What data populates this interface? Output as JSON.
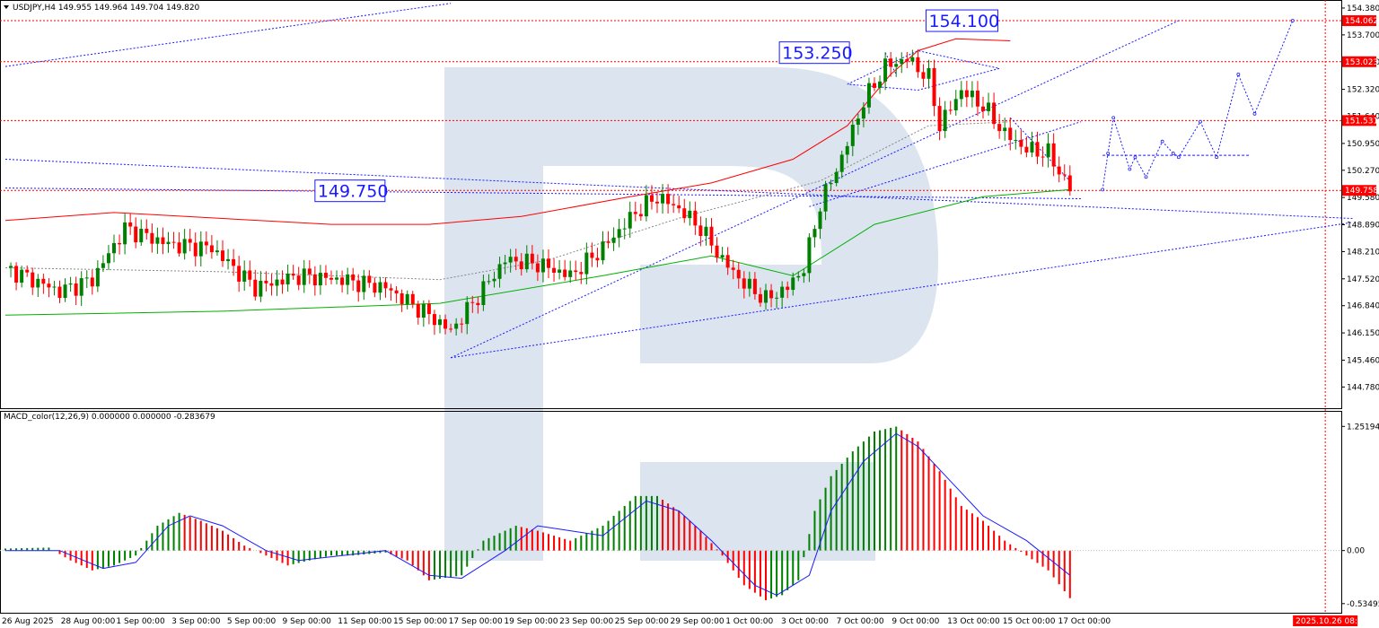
{
  "header": {
    "symbol_line": "USDJPY,H4  149.955 149.964 149.704 149.820",
    "macd_line": "MACD_color(12,26,9) 0.000000 0.000000 -0.283679"
  },
  "annotations": {
    "level_154": "154.100",
    "level_153": "153.250",
    "level_149": "149.750"
  },
  "colors": {
    "bull": "#008000",
    "bear": "#ff0000",
    "ma_slow": "#ff0000",
    "ma_fast": "#00b000",
    "trend": "#1a1aff",
    "level": "#ff0000",
    "macd_signal": "#1a1aff",
    "watermark": "#dbe4ef",
    "price_tag": "#ff0000"
  },
  "chart_data": {
    "type": "candlestick",
    "symbol": "USDJPY",
    "timeframe": "H4",
    "y_ticks": [
      "154.380",
      "153.700",
      "153.010",
      "152.320",
      "151.640",
      "150.950",
      "150.270",
      "149.580",
      "148.890",
      "148.210",
      "147.520",
      "146.840",
      "146.150",
      "145.460",
      "144.780"
    ],
    "ylim": [
      144.47,
      154.47
    ],
    "x_ticks": [
      "26 Aug 2025",
      "28 Aug 00:00",
      "1 Sep 00:00",
      "3 Sep 00:00",
      "5 Sep 00:00",
      "9 Sep 00:00",
      "11 Sep 00:00",
      "15 Sep 00:00",
      "17 Sep 00:00",
      "19 Sep 00:00",
      "23 Sep 00:00",
      "25 Sep 00:00",
      "29 Sep 00:00",
      "1 Oct 00:00",
      "3 Oct 00:00",
      "7 Oct 00:00",
      "9 Oct 00:00",
      "13 Oct 00:00",
      "15 Oct 00:00",
      "17 Oct 00:00"
    ],
    "x_end_label": "2025.10.26 08:00",
    "current_price": "149.758",
    "level_tags": [
      {
        "label": "154.062",
        "value": 154.06
      },
      {
        "label": "153.023",
        "value": 153.02
      },
      {
        "label": "151.531",
        "value": 151.53
      },
      {
        "label": "149.758",
        "value": 149.76
      }
    ],
    "close_anchors": [
      [
        0,
        147.8
      ],
      [
        10,
        147.2
      ],
      [
        16,
        147.5
      ],
      [
        22,
        148.8
      ],
      [
        30,
        148.4
      ],
      [
        38,
        148.3
      ],
      [
        46,
        147.3
      ],
      [
        54,
        147.6
      ],
      [
        62,
        147.5
      ],
      [
        70,
        147.3
      ],
      [
        78,
        146.6
      ],
      [
        82,
        146.2
      ],
      [
        86,
        146.9
      ],
      [
        92,
        148.0
      ],
      [
        98,
        147.9
      ],
      [
        104,
        147.6
      ],
      [
        110,
        148.3
      ],
      [
        116,
        149.2
      ],
      [
        120,
        149.6
      ],
      [
        124,
        149.3
      ],
      [
        128,
        148.8
      ],
      [
        132,
        148.0
      ],
      [
        136,
        147.4
      ],
      [
        140,
        147.0
      ],
      [
        144,
        147.3
      ],
      [
        147,
        147.8
      ],
      [
        150,
        149.4
      ],
      [
        154,
        150.6
      ],
      [
        158,
        152.0
      ],
      [
        162,
        152.9
      ],
      [
        166,
        153.1
      ],
      [
        170,
        152.6
      ],
      [
        172,
        151.4
      ],
      [
        176,
        152.3
      ],
      [
        180,
        151.9
      ],
      [
        184,
        151.2
      ],
      [
        188,
        150.8
      ],
      [
        192,
        150.7
      ],
      [
        196,
        149.8
      ]
    ],
    "ma_slow": [
      [
        0,
        149.0
      ],
      [
        20,
        149.2
      ],
      [
        40,
        149.05
      ],
      [
        60,
        148.9
      ],
      [
        78,
        148.9
      ],
      [
        95,
        149.1
      ],
      [
        115,
        149.6
      ],
      [
        130,
        149.95
      ],
      [
        145,
        150.55
      ],
      [
        155,
        151.4
      ],
      [
        163,
        152.7
      ],
      [
        168,
        153.3
      ],
      [
        175,
        153.6
      ],
      [
        185,
        153.55
      ]
    ],
    "ma_mid": [
      [
        0,
        147.8
      ],
      [
        40,
        147.7
      ],
      [
        80,
        147.5
      ],
      [
        100,
        148.0
      ],
      [
        125,
        149.1
      ],
      [
        150,
        150.0
      ],
      [
        170,
        151.4
      ],
      [
        185,
        151.5
      ]
    ],
    "ma_fast": [
      [
        0,
        146.6
      ],
      [
        40,
        146.7
      ],
      [
        80,
        146.9
      ],
      [
        110,
        147.6
      ],
      [
        130,
        148.1
      ],
      [
        145,
        147.6
      ],
      [
        160,
        148.9
      ],
      [
        180,
        149.6
      ],
      [
        196,
        149.78
      ]
    ],
    "forecast_path": [
      [
        202,
        149.78
      ],
      [
        203,
        150.7
      ],
      [
        204,
        151.6
      ],
      [
        207,
        150.3
      ],
      [
        208,
        150.6
      ],
      [
        210,
        150.1
      ],
      [
        213,
        151.0
      ],
      [
        215,
        150.7
      ],
      [
        216,
        150.6
      ],
      [
        220,
        151.5
      ],
      [
        223,
        150.6
      ],
      [
        227,
        152.7
      ],
      [
        230,
        151.7
      ],
      [
        237,
        154.06
      ]
    ],
    "forecast_range": {
      "from_x": 202,
      "to_x": 229,
      "value": 150.65
    },
    "trend_lines": [
      {
        "points": [
          [
            0,
            152.9
          ],
          [
            82,
            154.5
          ]
        ]
      },
      {
        "points": [
          [
            0,
            150.55
          ],
          [
            248,
            149.05
          ]
        ]
      },
      {
        "points": [
          [
            0,
            149.82
          ],
          [
            198,
            149.55
          ]
        ]
      },
      {
        "points": [
          [
            82,
            145.52
          ],
          [
            216,
            154.06
          ]
        ]
      },
      {
        "points": [
          [
            82,
            145.52
          ],
          [
            248,
            148.95
          ]
        ]
      },
      {
        "points": [
          [
            148,
            149.35
          ],
          [
            198,
            151.5
          ]
        ]
      },
      {
        "points": [
          [
            155,
            152.45
          ],
          [
            168,
            153.3
          ],
          [
            183,
            152.85
          ],
          [
            168,
            152.3
          ],
          [
            155,
            152.45
          ]
        ]
      },
      {
        "points": [
          [
            185,
            151.6
          ],
          [
            196,
            150.0
          ]
        ]
      }
    ],
    "guides": [
      {
        "from": [
          162,
          153.25
        ],
        "to": [
          164,
          152.7
        ]
      }
    ],
    "h_levels": [
      154.06,
      153.02,
      151.53,
      149.76
    ],
    "v_line_x": 243,
    "macd_ticks": [
      "1.25194",
      "0.00",
      "-0.53495"
    ],
    "macd_ylim": [
      -0.6,
      1.3
    ],
    "macd_hist": [
      [
        0,
        0.02
      ],
      [
        8,
        0.03
      ],
      [
        12,
        -0.1
      ],
      [
        16,
        -0.2
      ],
      [
        20,
        -0.15
      ],
      [
        24,
        -0.05
      ],
      [
        28,
        0.25
      ],
      [
        32,
        0.38
      ],
      [
        36,
        0.3
      ],
      [
        40,
        0.2
      ],
      [
        44,
        0.05
      ],
      [
        48,
        -0.05
      ],
      [
        52,
        -0.15
      ],
      [
        56,
        -0.1
      ],
      [
        60,
        -0.05
      ],
      [
        64,
        -0.05
      ],
      [
        70,
        -0.02
      ],
      [
        74,
        -0.1
      ],
      [
        78,
        -0.3
      ],
      [
        84,
        -0.25
      ],
      [
        88,
        0.1
      ],
      [
        94,
        0.25
      ],
      [
        98,
        0.2
      ],
      [
        104,
        0.1
      ],
      [
        110,
        0.25
      ],
      [
        116,
        0.55
      ],
      [
        120,
        0.55
      ],
      [
        124,
        0.4
      ],
      [
        128,
        0.2
      ],
      [
        132,
        -0.05
      ],
      [
        136,
        -0.35
      ],
      [
        140,
        -0.5
      ],
      [
        143,
        -0.45
      ],
      [
        146,
        -0.3
      ],
      [
        149,
        0.4
      ],
      [
        152,
        0.75
      ],
      [
        156,
        1.0
      ],
      [
        160,
        1.2
      ],
      [
        164,
        1.25
      ],
      [
        168,
        1.1
      ],
      [
        172,
        0.8
      ],
      [
        176,
        0.45
      ],
      [
        180,
        0.3
      ],
      [
        184,
        0.1
      ],
      [
        188,
        -0.05
      ],
      [
        192,
        -0.2
      ],
      [
        196,
        -0.48
      ]
    ],
    "macd_signal": [
      [
        0,
        0.0
      ],
      [
        10,
        0.0
      ],
      [
        18,
        -0.18
      ],
      [
        24,
        -0.12
      ],
      [
        30,
        0.25
      ],
      [
        34,
        0.35
      ],
      [
        40,
        0.25
      ],
      [
        48,
        0.0
      ],
      [
        54,
        -0.1
      ],
      [
        62,
        -0.05
      ],
      [
        70,
        0.0
      ],
      [
        78,
        -0.25
      ],
      [
        84,
        -0.28
      ],
      [
        92,
        0.0
      ],
      [
        98,
        0.25
      ],
      [
        104,
        0.2
      ],
      [
        110,
        0.15
      ],
      [
        118,
        0.5
      ],
      [
        124,
        0.4
      ],
      [
        130,
        0.1
      ],
      [
        138,
        -0.35
      ],
      [
        142,
        -0.45
      ],
      [
        148,
        -0.25
      ],
      [
        152,
        0.4
      ],
      [
        158,
        0.9
      ],
      [
        164,
        1.18
      ],
      [
        168,
        1.05
      ],
      [
        174,
        0.7
      ],
      [
        180,
        0.35
      ],
      [
        188,
        0.1
      ],
      [
        196,
        -0.25
      ]
    ]
  }
}
